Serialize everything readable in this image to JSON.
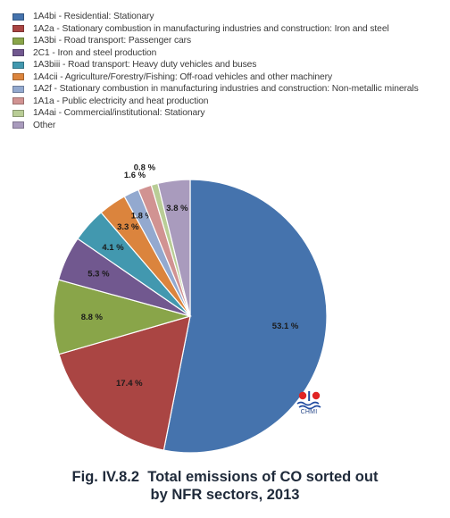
{
  "caption": {
    "line1": "Fig. IV.8.2  Total emissions of CO sorted out",
    "line2": "by NFR sectors, 2013"
  },
  "logo": {
    "text": "CHMI"
  },
  "chart_data": {
    "type": "pie",
    "title": "Fig. IV.8.2  Total emissions of CO sorted out by NFR sectors, 2013",
    "legend_position": "top",
    "slices": [
      {
        "name": "1A4bi - Residential: Stationary",
        "value": 53.1,
        "label": "53.1 %",
        "color": "#4573ad"
      },
      {
        "name": "1A2a - Stationary combustion in manufacturing industries and construction: Iron and steel",
        "value": 17.4,
        "label": "17.4 %",
        "color": "#aa4543"
      },
      {
        "name": "1A3bi - Road transport: Passenger cars",
        "value": 8.8,
        "label": "8.8 %",
        "color": "#89a549"
      },
      {
        "name": "2C1 - Iron and steel production",
        "value": 5.3,
        "label": "5.3 %",
        "color": "#71588f"
      },
      {
        "name": "1A3biii - Road transport: Heavy duty vehicles and buses",
        "value": 4.1,
        "label": "4.1 %",
        "color": "#4298af"
      },
      {
        "name": "1A4cii - Agriculture/Forestry/Fishing: Off-road vehicles and other machinery",
        "value": 3.3,
        "label": "3.3 %",
        "color": "#db843d"
      },
      {
        "name": "1A2f - Stationary combustion in manufacturing industries and construction: Non-metallic minerals",
        "value": 1.8,
        "label": "1.8 %",
        "color": "#93a9cf"
      },
      {
        "name": "1A1a - Public electricity and heat production",
        "value": 1.6,
        "label": "1.6 %",
        "color": "#d19392"
      },
      {
        "name": "1A4ai - Commercial/institutional: Stationary",
        "value": 0.8,
        "label": "0.8 %",
        "color": "#b9cd96"
      },
      {
        "name": "Other",
        "value": 3.8,
        "label": "3.8 %",
        "color": "#a99bbd"
      }
    ]
  }
}
